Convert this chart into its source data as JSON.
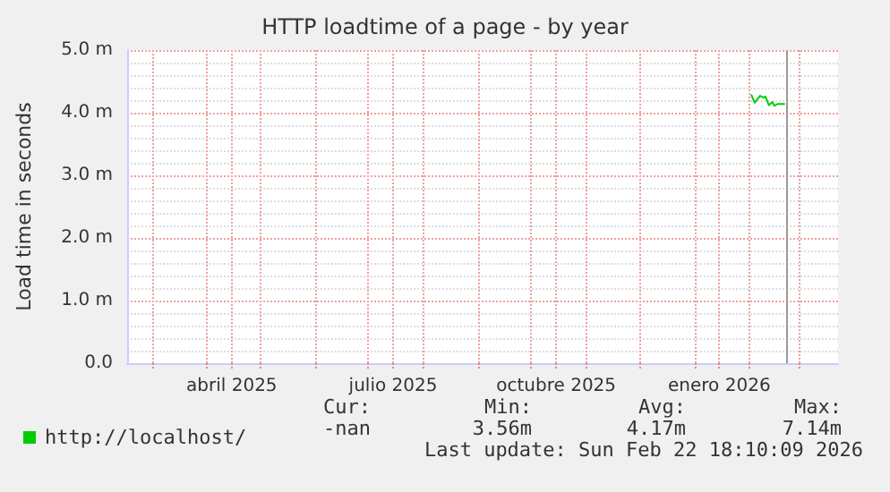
{
  "chart_data": {
    "type": "line",
    "title": "HTTP loadtime of a page - by year",
    "ylabel": "Load time in seconds",
    "x": [
      "2026-02-02",
      "2026-02-04",
      "2026-02-07",
      "2026-02-09",
      "2026-02-10",
      "2026-02-12",
      "2026-02-14",
      "2026-02-15",
      "2026-02-17",
      "2026-02-19",
      "2026-02-21"
    ],
    "series": [
      {
        "name": "http://localhost/",
        "color": "#00cc00",
        "values": [
          4.29,
          4.16,
          4.27,
          4.24,
          4.26,
          4.12,
          4.17,
          4.11,
          4.14,
          4.14,
          4.14
        ]
      }
    ],
    "xlim": [
      "2025-02-15",
      "2026-03-23"
    ],
    "xticks": [
      {
        "value": "2025-03-01",
        "label": null
      },
      {
        "value": "2025-04-01",
        "label": null
      },
      {
        "value": "2025-04-15",
        "label": "abril 2025"
      },
      {
        "value": "2025-05-01",
        "label": null
      },
      {
        "value": "2025-06-01",
        "label": null
      },
      {
        "value": "2025-07-01",
        "label": null
      },
      {
        "value": "2025-07-15",
        "label": "julio 2025"
      },
      {
        "value": "2025-08-01",
        "label": null
      },
      {
        "value": "2025-09-01",
        "label": null
      },
      {
        "value": "2025-10-01",
        "label": null
      },
      {
        "value": "2025-10-15",
        "label": "octubre 2025"
      },
      {
        "value": "2025-11-01",
        "label": null
      },
      {
        "value": "2025-12-01",
        "label": null
      },
      {
        "value": "2026-01-01",
        "label": null
      },
      {
        "value": "2026-01-15",
        "label": "enero 2026"
      },
      {
        "value": "2026-02-01",
        "label": null
      },
      {
        "value": "2026-03-01",
        "label": null
      }
    ],
    "ylim": [
      0,
      5
    ],
    "yticks": [
      {
        "value": 0,
        "label": "0.0"
      },
      {
        "value": 1,
        "label": "1.0 m"
      },
      {
        "value": 2,
        "label": "2.0 m"
      },
      {
        "value": 3,
        "label": "3.0 m"
      },
      {
        "value": 4,
        "label": "4.0 m"
      },
      {
        "value": 5,
        "label": "5.0 m"
      }
    ],
    "ref_lines": [
      {
        "axis": "x",
        "value": "2026-02-22",
        "label": null,
        "color": "#999999"
      }
    ],
    "grid": true,
    "legend": "bottom left",
    "marker": "none",
    "line_style": "solid",
    "annotations": [
      "Cur:",
      "-nan",
      "Min:",
      "3.56m",
      "Avg:",
      "4.17m",
      "Max:",
      "7.14m",
      "Last update: Sun Feb 22 18:10:09 2026"
    ]
  }
}
